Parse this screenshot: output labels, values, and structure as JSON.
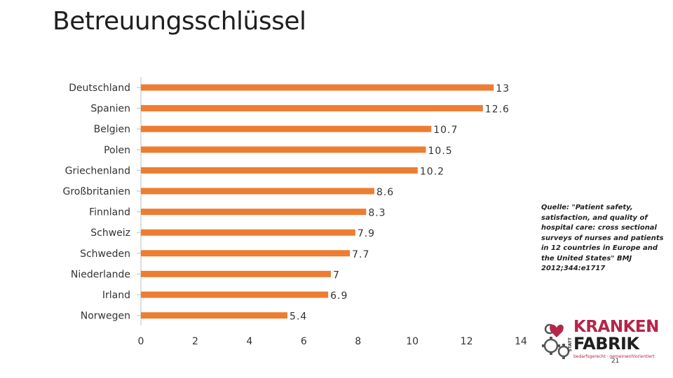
{
  "title": "Betreuungsschlüssel",
  "chart_data": {
    "type": "bar",
    "orientation": "horizontal",
    "title": "Betreuungsschlüssel",
    "categories": [
      "Deutschland",
      "Spanien",
      "Belgien",
      "Polen",
      "Griechenland",
      "Großbritanien",
      "Finnland",
      "Schweiz",
      "Schweden",
      "Niederlande",
      "Irland",
      "Norwegen"
    ],
    "values": [
      13,
      12.6,
      10.7,
      10.5,
      10.2,
      8.6,
      8.3,
      7.9,
      7.7,
      7,
      6.9,
      5.4
    ],
    "value_labels": [
      "13",
      "12.6",
      "10.7",
      "10.5",
      "10.2",
      "8.6",
      "8.3",
      "7.9",
      "7.7",
      "7",
      "6.9",
      "5.4"
    ],
    "xticks": [
      "0",
      "2",
      "4",
      "6",
      "8",
      "10",
      "12",
      "14"
    ],
    "xlim": [
      0,
      14
    ],
    "bar_color": "#ED7D31",
    "axis_color": "#BFBFBF",
    "grid": false
  },
  "source": {
    "text": "Quelle: \"Patient safety, satisfaction, and quality of hospital care: cross sectional surveys of nurses and patients in 12 countries in Europe and the United States\" BMJ 2012;344:e1717"
  },
  "logo": {
    "kranken": "KRANKEN",
    "haus": "HAUS",
    "statt": "STATT",
    "fabrik": "FABRIK",
    "tagline": "bedarfsgerecht · gemeinwohlorientiert",
    "accent_color": "#B5254A"
  },
  "page_number": "21"
}
